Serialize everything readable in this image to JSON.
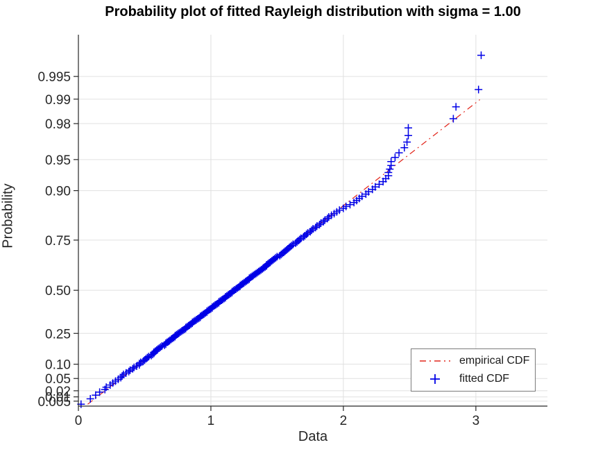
{
  "colors": {
    "axis": "#262626",
    "grid": "#e0e0e0",
    "tick_text": "#262626",
    "title_text": "#000000",
    "legend_border": "#7a7a7a"
  },
  "chart_data": {
    "type": "scatter",
    "title": "Probability plot of fitted Rayleigh distribution with sigma = 1.00",
    "xlabel": "Data",
    "ylabel": "Probability",
    "xlim": [
      0,
      3.54
    ],
    "x_ticks": [
      0,
      1,
      2,
      3
    ],
    "x_tick_labels": [
      "0",
      "1",
      "2",
      "3"
    ],
    "y_scale": "rayleigh-quantile q = sqrt(-2*ln(1-p)), sigma = 1",
    "q_range": [
      0.052,
      3.661
    ],
    "y_tick_probabilities": [
      0.005,
      0.01,
      0.02,
      0.05,
      0.1,
      0.25,
      0.5,
      0.75,
      0.9,
      0.95,
      0.98,
      0.99,
      0.995
    ],
    "y_tick_labels": [
      "0.005",
      "0.01",
      "0.02",
      "0.05",
      "0.10",
      "0.25",
      "0.50",
      "0.75",
      "0.90",
      "0.95",
      "0.98",
      "0.99",
      "0.995"
    ],
    "grid": true,
    "legend": {
      "position": "lower right",
      "entries": [
        {
          "label": "empirical CDF",
          "type": "line",
          "style": "dash-dot",
          "color": "#e2261b"
        },
        {
          "label": "fitted CDF",
          "type": "marker",
          "marker": "+",
          "color": "#0000e6"
        }
      ]
    },
    "reference_line": {
      "sigma": 1.0,
      "x_start": 0.07,
      "x_end": 3.03
    },
    "n_points": 200,
    "plotting_positions": "(i - 0.5) / 200",
    "x_sorted": [
      0.02,
      0.09,
      0.13,
      0.16,
      0.2,
      0.21,
      0.24,
      0.26,
      0.28,
      0.3,
      0.32,
      0.33,
      0.34,
      0.36,
      0.38,
      0.39,
      0.41,
      0.42,
      0.44,
      0.46,
      0.46,
      0.47,
      0.49,
      0.5,
      0.51,
      0.52,
      0.53,
      0.55,
      0.56,
      0.57,
      0.57,
      0.58,
      0.59,
      0.6,
      0.61,
      0.62,
      0.63,
      0.65,
      0.66,
      0.66,
      0.67,
      0.68,
      0.69,
      0.7,
      0.71,
      0.72,
      0.73,
      0.73,
      0.74,
      0.75,
      0.76,
      0.77,
      0.78,
      0.79,
      0.8,
      0.81,
      0.81,
      0.82,
      0.83,
      0.84,
      0.85,
      0.86,
      0.86,
      0.87,
      0.88,
      0.89,
      0.9,
      0.91,
      0.92,
      0.92,
      0.93,
      0.94,
      0.95,
      0.96,
      0.97,
      0.97,
      0.98,
      0.99,
      1.0,
      1.01,
      1.01,
      1.02,
      1.03,
      1.04,
      1.05,
      1.06,
      1.06,
      1.07,
      1.08,
      1.09,
      1.1,
      1.11,
      1.11,
      1.12,
      1.13,
      1.14,
      1.15,
      1.16,
      1.16,
      1.17,
      1.18,
      1.19,
      1.2,
      1.21,
      1.22,
      1.22,
      1.23,
      1.24,
      1.25,
      1.26,
      1.27,
      1.28,
      1.29,
      1.29,
      1.3,
      1.31,
      1.32,
      1.33,
      1.34,
      1.35,
      1.36,
      1.37,
      1.38,
      1.39,
      1.4,
      1.41,
      1.42,
      1.42,
      1.43,
      1.44,
      1.45,
      1.46,
      1.47,
      1.48,
      1.49,
      1.5,
      1.52,
      1.53,
      1.54,
      1.55,
      1.56,
      1.57,
      1.58,
      1.59,
      1.6,
      1.61,
      1.62,
      1.64,
      1.65,
      1.66,
      1.67,
      1.68,
      1.7,
      1.71,
      1.72,
      1.73,
      1.75,
      1.76,
      1.77,
      1.79,
      1.8,
      1.82,
      1.83,
      1.85,
      1.86,
      1.88,
      1.89,
      1.91,
      1.93,
      1.95,
      1.97,
      2.0,
      2.02,
      2.05,
      2.08,
      2.1,
      2.12,
      2.14,
      2.17,
      2.19,
      2.22,
      2.24,
      2.27,
      2.3,
      2.32,
      2.34,
      2.34,
      2.35,
      2.36,
      2.36,
      2.39,
      2.42,
      2.46,
      2.48,
      2.49,
      2.49,
      2.83,
      2.85,
      3.02,
      3.04
    ]
  }
}
